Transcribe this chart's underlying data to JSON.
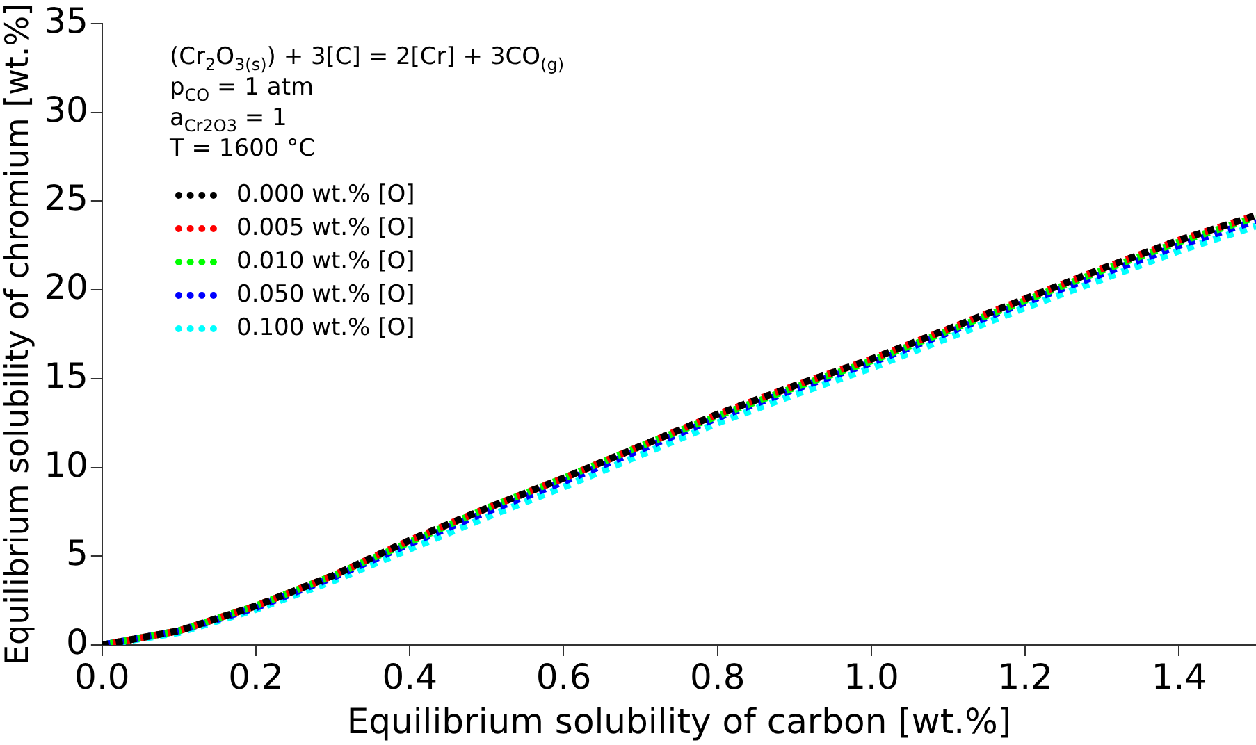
{
  "chart_data": {
    "type": "line",
    "xlabel": "Equilibrium solubility of carbon [wt.%]",
    "ylabel": "Equilibrium solubility of chromium [wt.%]",
    "annotations": [
      "(Cr$_{2}$O$_{3(s)}$) + 3[C] = 2[Cr] + 3CO$_{(g)}$",
      "p$_{CO}$ = 1 atm",
      "a$_{Cr2O3}$ = 1",
      "T = 1600 °C"
    ],
    "x": [
      0,
      0.1,
      0.2,
      0.3,
      0.4,
      0.5,
      0.6,
      0.7,
      0.8,
      0.9,
      1.0,
      1.1,
      1.2,
      1.3,
      1.4,
      1.5
    ],
    "series": [
      {
        "name": "0.000 wt.% [O]",
        "color": "#000000",
        "values": [
          0,
          0.8,
          2.2,
          3.9,
          5.9,
          7.7,
          9.4,
          11.2,
          13.0,
          14.6,
          16.1,
          17.8,
          19.5,
          21.2,
          22.8,
          24.2
        ]
      },
      {
        "name": "0.005 wt.% [O]",
        "color": "#ff0000",
        "values": [
          0,
          0.8,
          2.2,
          3.9,
          5.9,
          7.7,
          9.4,
          11.2,
          13.0,
          14.6,
          16.1,
          17.8,
          19.5,
          21.2,
          22.8,
          24.2
        ]
      },
      {
        "name": "0.010 wt.% [O]",
        "color": "#00ff00",
        "values": [
          0,
          0.8,
          2.2,
          3.9,
          5.8,
          7.7,
          9.4,
          11.2,
          12.9,
          14.5,
          16.0,
          17.7,
          19.4,
          21.1,
          22.7,
          24.1
        ]
      },
      {
        "name": "0.050 wt.% [O]",
        "color": "#0000ff",
        "values": [
          0,
          0.8,
          2.1,
          3.8,
          5.7,
          7.5,
          9.2,
          11.0,
          12.8,
          14.4,
          15.9,
          17.6,
          19.3,
          20.9,
          22.5,
          23.9
        ]
      },
      {
        "name": "0.100 wt.% [O]",
        "color": "#00ffff",
        "values": [
          0,
          0.7,
          2.0,
          3.6,
          5.4,
          7.2,
          8.9,
          10.7,
          12.5,
          14.1,
          15.6,
          17.3,
          19.0,
          20.6,
          22.2,
          23.6
        ]
      }
    ],
    "xlim": [
      0,
      1.5
    ],
    "xticks": [
      {
        "value": 0,
        "label": "0.0"
      },
      0.2,
      0.4,
      0.6,
      0.8,
      {
        "value": 1,
        "label": "1.0"
      },
      1.2,
      1.4
    ],
    "ylim": [
      0,
      35
    ],
    "yticks": [
      0,
      5,
      10,
      15,
      20,
      25,
      30,
      35
    ],
    "grid": false,
    "legend": "top left",
    "line_style": "dotted",
    "marker": "none"
  }
}
